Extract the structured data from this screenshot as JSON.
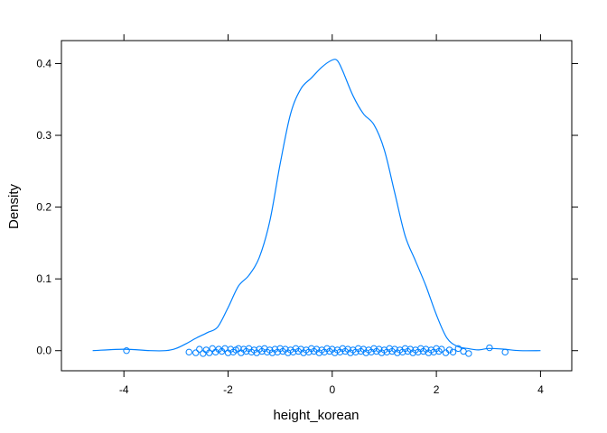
{
  "chart_data": {
    "type": "area",
    "title": "",
    "xlabel": "height_korean",
    "ylabel": "Density",
    "xlim": [
      -5.2,
      4.6
    ],
    "ylim": [
      -0.028,
      0.432
    ],
    "xticks": [
      -4,
      -2,
      0,
      2,
      4
    ],
    "xtick_labels": [
      "-4",
      "-2",
      "0",
      "2",
      "4"
    ],
    "yticks": [
      0.0,
      0.1,
      0.2,
      0.3,
      0.4
    ],
    "ytick_labels": [
      "0.0",
      "0.1",
      "0.2",
      "0.3",
      "0.4"
    ],
    "grid": false,
    "legend": "none",
    "color": "#0080ff",
    "density_curve": {
      "x": [
        -4.6,
        -4.0,
        -3.5,
        -3.2,
        -3.0,
        -2.8,
        -2.6,
        -2.4,
        -2.2,
        -2.0,
        -1.8,
        -1.6,
        -1.4,
        -1.2,
        -1.0,
        -0.8,
        -0.6,
        -0.4,
        -0.2,
        0.0,
        0.1,
        0.2,
        0.4,
        0.6,
        0.8,
        1.0,
        1.2,
        1.4,
        1.6,
        1.8,
        2.0,
        2.2,
        2.4,
        2.6,
        2.8,
        3.0,
        3.3,
        3.6,
        4.0
      ],
      "y": [
        0.0,
        0.002,
        0.0,
        0.0,
        0.003,
        0.01,
        0.018,
        0.025,
        0.033,
        0.06,
        0.09,
        0.105,
        0.13,
        0.18,
        0.26,
        0.33,
        0.365,
        0.38,
        0.395,
        0.405,
        0.404,
        0.39,
        0.355,
        0.33,
        0.315,
        0.28,
        0.22,
        0.16,
        0.125,
        0.09,
        0.05,
        0.018,
        0.006,
        0.003,
        0.001,
        0.003,
        0.002,
        0.0,
        0.0
      ]
    },
    "rug_points": {
      "x": [
        -3.95,
        -2.75,
        -2.62,
        -2.55,
        -2.48,
        -2.42,
        -2.36,
        -2.3,
        -2.24,
        -2.18,
        -2.12,
        -2.06,
        -2.0,
        -1.95,
        -1.9,
        -1.85,
        -1.8,
        -1.75,
        -1.7,
        -1.65,
        -1.6,
        -1.55,
        -1.5,
        -1.45,
        -1.4,
        -1.35,
        -1.3,
        -1.25,
        -1.2,
        -1.15,
        -1.1,
        -1.05,
        -1.0,
        -0.95,
        -0.9,
        -0.85,
        -0.8,
        -0.75,
        -0.7,
        -0.65,
        -0.6,
        -0.55,
        -0.5,
        -0.45,
        -0.4,
        -0.35,
        -0.3,
        -0.25,
        -0.2,
        -0.15,
        -0.1,
        -0.05,
        0.0,
        0.05,
        0.1,
        0.15,
        0.2,
        0.25,
        0.3,
        0.35,
        0.4,
        0.45,
        0.5,
        0.55,
        0.6,
        0.65,
        0.7,
        0.75,
        0.8,
        0.85,
        0.9,
        0.95,
        1.0,
        1.05,
        1.1,
        1.15,
        1.2,
        1.25,
        1.3,
        1.35,
        1.4,
        1.45,
        1.5,
        1.55,
        1.6,
        1.65,
        1.7,
        1.75,
        1.8,
        1.85,
        1.9,
        1.95,
        2.0,
        2.05,
        2.1,
        2.18,
        2.25,
        2.32,
        2.42,
        2.52,
        2.62,
        3.02,
        3.32
      ],
      "y": [
        0.0,
        -0.002,
        -0.003,
        0.002,
        -0.004,
        0.001,
        -0.003,
        0.003,
        -0.002,
        0.002,
        -0.001,
        0.003,
        -0.003,
        0.002,
        -0.002,
        0.001,
        0.003,
        -0.003,
        0.002,
        -0.001,
        0.003,
        -0.002,
        0.001,
        -0.003,
        0.002,
        -0.001,
        0.003,
        -0.002,
        0.001,
        -0.003,
        0.002,
        -0.002,
        0.003,
        -0.001,
        0.002,
        -0.003,
        0.001,
        -0.002,
        0.003,
        -0.001,
        0.002,
        -0.003,
        0.001,
        -0.002,
        0.003,
        -0.001,
        0.002,
        -0.003,
        0.001,
        -0.002,
        0.003,
        -0.001,
        0.002,
        -0.003,
        0.001,
        -0.002,
        0.003,
        -0.001,
        0.002,
        -0.003,
        0.001,
        -0.002,
        0.003,
        -0.001,
        0.002,
        -0.003,
        0.001,
        -0.002,
        0.003,
        -0.001,
        0.002,
        -0.003,
        0.001,
        -0.002,
        0.003,
        -0.001,
        0.002,
        -0.003,
        0.001,
        -0.002,
        0.003,
        -0.001,
        0.002,
        -0.003,
        0.001,
        -0.002,
        0.003,
        -0.001,
        0.002,
        -0.003,
        0.001,
        -0.002,
        0.003,
        -0.001,
        0.002,
        -0.003,
        0.001,
        -0.002,
        0.003,
        -0.001,
        -0.004,
        0.004,
        -0.002
      ]
    }
  }
}
